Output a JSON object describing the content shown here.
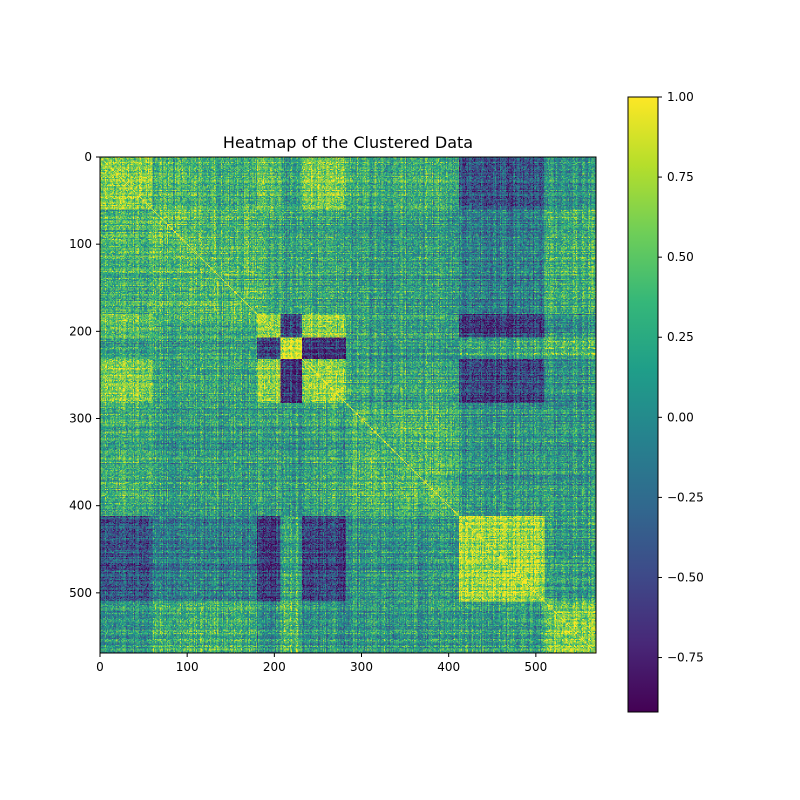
{
  "chart_data": {
    "type": "heatmap",
    "title": "Heatmap of the Clustered Data",
    "xlabel": "",
    "ylabel": "",
    "n": 569,
    "xlim": [
      0,
      569
    ],
    "ylim": [
      569,
      0
    ],
    "xticks": [
      0,
      100,
      200,
      300,
      400,
      500
    ],
    "yticks": [
      0,
      100,
      200,
      300,
      400,
      500
    ],
    "colormap": "viridis",
    "vmin": -0.92,
    "vmax": 1.0,
    "colorbar_ticks": [
      1.0,
      0.75,
      0.5,
      0.25,
      0.0,
      -0.25,
      -0.5,
      -0.75
    ],
    "colorbar_tick_labels": [
      "1.00",
      "0.75",
      "0.50",
      "0.25",
      "0.00",
      "−0.25",
      "−0.50",
      "−0.75"
    ],
    "clusters": [
      {
        "start": 0,
        "end": 60
      },
      {
        "start": 60,
        "end": 180
      },
      {
        "start": 180,
        "end": 207
      },
      {
        "start": 207,
        "end": 232
      },
      {
        "start": 232,
        "end": 282
      },
      {
        "start": 282,
        "end": 412
      },
      {
        "start": 412,
        "end": 510
      },
      {
        "start": 510,
        "end": 569
      }
    ],
    "block_mean_correlation": [
      [
        0.62,
        0.3,
        0.45,
        0.1,
        0.6,
        0.25,
        -0.45,
        0.05
      ],
      [
        0.3,
        0.42,
        0.3,
        0.15,
        0.25,
        0.15,
        -0.1,
        0.3
      ],
      [
        0.45,
        0.3,
        0.75,
        -0.55,
        0.7,
        0.2,
        -0.6,
        0.05
      ],
      [
        0.1,
        0.15,
        -0.55,
        0.85,
        -0.6,
        0.15,
        0.2,
        0.4
      ],
      [
        0.6,
        0.25,
        0.7,
        -0.6,
        0.68,
        0.2,
        -0.55,
        0.05
      ],
      [
        0.25,
        0.15,
        0.2,
        0.15,
        0.2,
        0.35,
        0.05,
        0.1
      ],
      [
        -0.45,
        -0.1,
        -0.6,
        0.2,
        -0.55,
        0.05,
        0.72,
        0.15
      ],
      [
        0.05,
        0.3,
        0.05,
        0.4,
        0.05,
        0.1,
        0.15,
        0.62
      ]
    ],
    "diagonal_value": 1.0,
    "grid": false,
    "colorbar_position": "right"
  }
}
